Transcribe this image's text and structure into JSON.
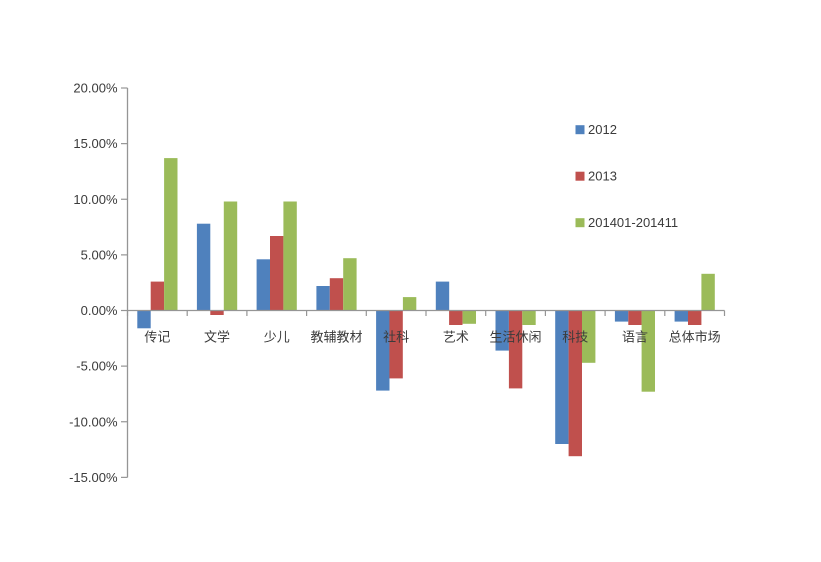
{
  "chart_data": {
    "type": "bar",
    "title": "",
    "xlabel": "",
    "ylabel": "",
    "categories": [
      "传记",
      "文学",
      "少儿",
      "教辅教材",
      "社科",
      "艺术",
      "生活休闲",
      "科技",
      "语言",
      "总体市场"
    ],
    "series": [
      {
        "name": "2012",
        "color": "#4F81BD",
        "values": [
          -1.6,
          7.8,
          4.6,
          2.2,
          -7.2,
          2.6,
          -3.6,
          -12.0,
          -1.0,
          -1.0
        ]
      },
      {
        "name": "2013",
        "color": "#C0504D",
        "values": [
          2.6,
          -0.4,
          6.7,
          2.9,
          -6.1,
          -1.3,
          -7.0,
          -13.1,
          -1.3,
          -1.3
        ]
      },
      {
        "name": "201401-201411",
        "color": "#9BBB59",
        "values": [
          13.7,
          9.8,
          9.8,
          4.7,
          1.2,
          -1.2,
          -1.3,
          -4.7,
          -7.3,
          3.3
        ]
      }
    ],
    "unit": "%",
    "ylim": [
      -15,
      20
    ],
    "ytick_step": 5,
    "ytick_labels": [
      "20.00%",
      "15.00%",
      "10.00%",
      "5.00%",
      "0.00%",
      "-5.00%",
      "-10.00%",
      "-15.00%"
    ],
    "grid": false,
    "legend_position": "right-upper",
    "legend_entries": [
      "2012",
      "2013",
      "201401-201411"
    ],
    "colors": {
      "axis": "#959595",
      "tick_text": "#3B3B3B",
      "background": "#FFFFFF"
    }
  }
}
